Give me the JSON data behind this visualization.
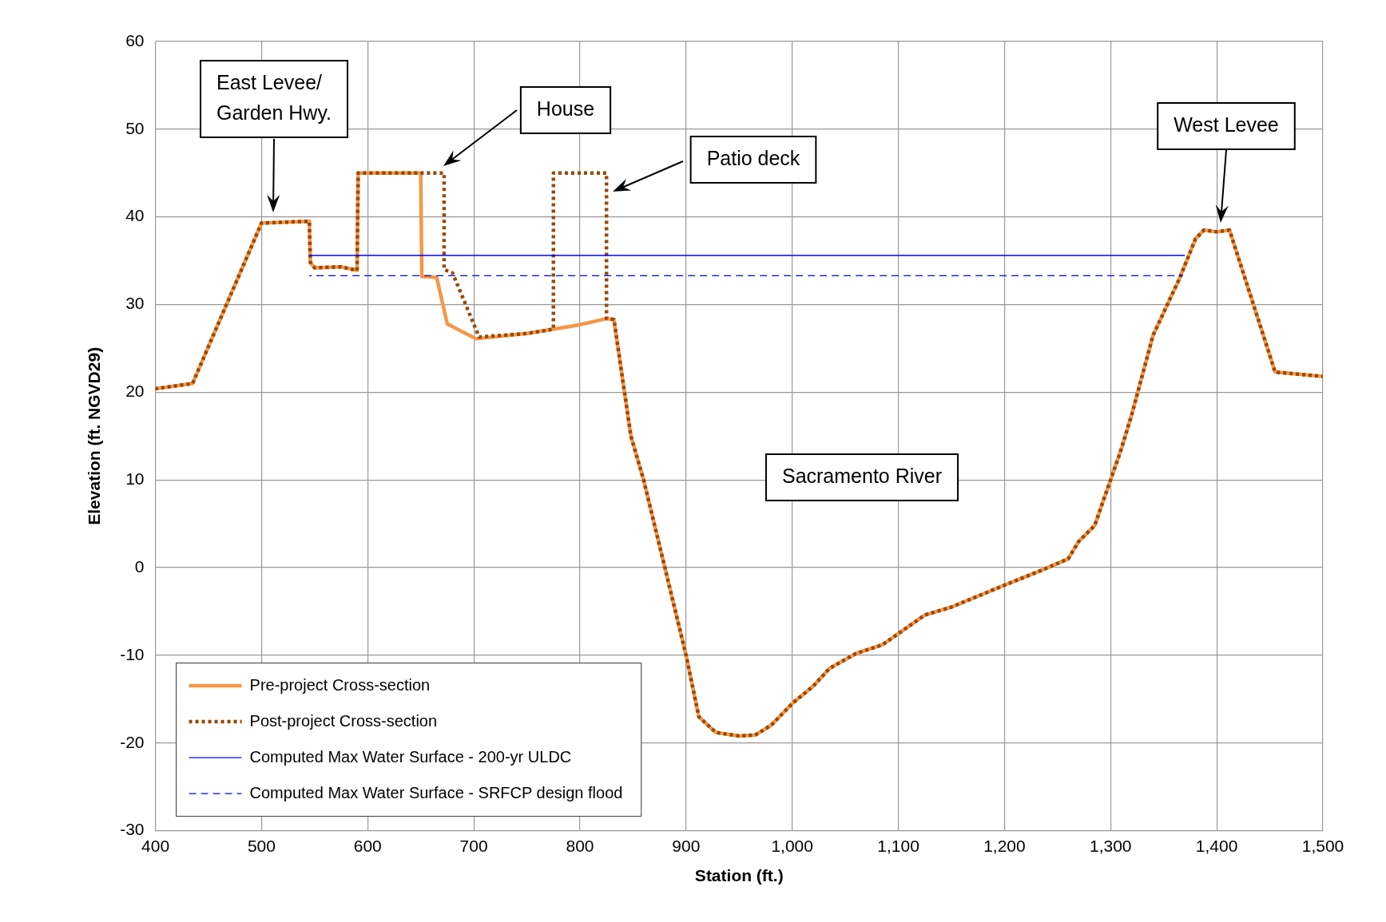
{
  "chart_data": {
    "type": "line",
    "xlabel": "Station (ft.)",
    "ylabel": "Elevation (ft. NGVD29)",
    "xlim": [
      400,
      1500
    ],
    "xticks": [
      400,
      500,
      600,
      700,
      800,
      900,
      {
        "value": 1000,
        "label": "1,000"
      },
      {
        "value": 1100,
        "label": "1,100"
      },
      {
        "value": 1200,
        "label": "1,200"
      },
      {
        "value": 1300,
        "label": "1,300"
      },
      {
        "value": 1400,
        "label": "1,400"
      },
      {
        "value": 1500,
        "label": "1,500"
      }
    ],
    "ylim": [
      -30,
      60
    ],
    "yticks": [
      -30,
      -20,
      -10,
      0,
      10,
      20,
      30,
      40,
      50,
      60
    ],
    "grid": true,
    "legend": "bottom left",
    "series": [
      {
        "name": "Pre-project Cross-section",
        "color": "#f79646",
        "line_style": "solid",
        "x": [
          400,
          435,
          500,
          545,
          546,
          550,
          575,
          590,
          591,
          650,
          651,
          665,
          675,
          702,
          750,
          780,
          800,
          825,
          832,
          848,
          860,
          880,
          900,
          912,
          928,
          950,
          965,
          980,
          1000,
          1020,
          1035,
          1060,
          1085,
          1125,
          1150,
          1200,
          1235,
          1260,
          1270,
          1285,
          1310,
          1320,
          1340,
          1365,
          1380,
          1388,
          1400,
          1412,
          1455,
          1500
        ],
        "values": [
          20.4,
          21,
          39.3,
          39.5,
          34.8,
          34.2,
          34.3,
          33.9,
          45,
          45,
          33.2,
          33.1,
          27.8,
          26.1,
          26.7,
          27.3,
          27.7,
          28.4,
          28.3,
          15,
          10,
          0,
          -10,
          -17,
          -18.8,
          -19.2,
          -19.1,
          -18,
          -15.5,
          -13.5,
          -11.5,
          -9.8,
          -8.8,
          -5.4,
          -4.5,
          -2,
          -0.3,
          1,
          3,
          4.8,
          13.5,
          17.5,
          26.5,
          33,
          37.5,
          38.5,
          38.3,
          38.5,
          22.3,
          21.8
        ]
      },
      {
        "name": "Post-project Cross-section",
        "color": "#984807",
        "line_style": "dotted",
        "x": [
          400,
          435,
          500,
          545,
          546,
          550,
          575,
          590,
          591,
          672,
          672,
          680,
          705,
          750,
          775,
          775,
          825,
          825,
          832,
          848,
          860,
          880,
          900,
          912,
          928,
          950,
          965,
          980,
          1000,
          1020,
          1035,
          1060,
          1085,
          1125,
          1150,
          1200,
          1235,
          1260,
          1270,
          1285,
          1310,
          1320,
          1340,
          1365,
          1380,
          1388,
          1400,
          1412,
          1455,
          1500
        ],
        "values": [
          20.4,
          21,
          39.3,
          39.5,
          34.8,
          34.2,
          34.3,
          33.9,
          45,
          45,
          34,
          33.6,
          26.3,
          26.7,
          27.2,
          45,
          45,
          28.4,
          28.3,
          15,
          10,
          0,
          -10,
          -17,
          -18.8,
          -19.2,
          -19.1,
          -18,
          -15.5,
          -13.5,
          -11.5,
          -9.8,
          -8.8,
          -5.4,
          -4.5,
          -2,
          -0.3,
          1,
          3,
          4.8,
          13.5,
          17.5,
          26.5,
          33,
          37.5,
          38.5,
          38.3,
          38.5,
          22.3,
          21.8
        ]
      },
      {
        "name": "Computed Max Water Surface - 200-yr ULDC",
        "color": "#0000ff",
        "line_style": "solid",
        "x": [
          545,
          1370
        ],
        "values": [
          35.6,
          35.6
        ]
      },
      {
        "name": "Computed Max Water Surface - SRFCP design flood",
        "color": "#0000ff",
        "line_style": "dashed",
        "x": [
          545,
          1368
        ],
        "values": [
          33.3,
          33.3
        ]
      }
    ],
    "annotations": [
      "East Levee/\nGarden Hwy.",
      "House",
      "Patio deck",
      "West Levee",
      "Sacramento River"
    ]
  }
}
